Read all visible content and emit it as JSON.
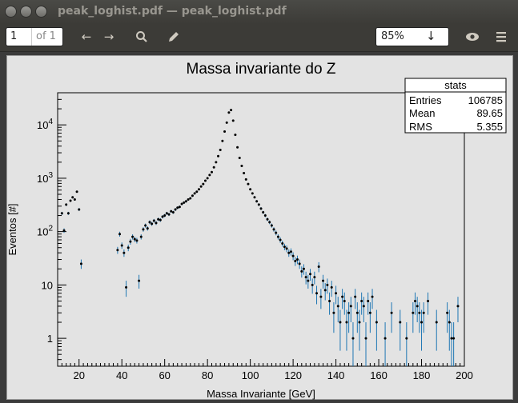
{
  "window": {
    "title": "peak_loghist.pdf — peak_loghist.pdf"
  },
  "toolbar": {
    "page_current": "1",
    "page_total": "of 1",
    "zoom": "85%",
    "icons": [
      "back-arrow-icon",
      "forward-arrow-icon",
      "search-icon",
      "pencil-icon",
      "chevron-down-icon",
      "eye-icon",
      "menu-icon"
    ]
  },
  "chart_data": {
    "type": "scatter",
    "title": "Massa invariante do Z",
    "xlabel": "Massa Invariante [GeV]",
    "ylabel": "Eventos [#]",
    "xlim": [
      10,
      200
    ],
    "ylim": [
      0.3,
      40000
    ],
    "yscale": "log",
    "x_ticks": [
      "20",
      "40",
      "60",
      "80",
      "100",
      "120",
      "140",
      "160",
      "180",
      "200"
    ],
    "y_ticks": [
      "1",
      "10",
      "10^2",
      "10^3",
      "10^4"
    ],
    "stats": {
      "title": "stats",
      "rows": [
        {
          "label": "Entries",
          "value": "106785"
        },
        {
          "label": "Mean",
          "value": "89.65"
        },
        {
          "label": "RMS",
          "value": "5.355"
        }
      ]
    },
    "series": [
      {
        "points": [
          [
            12,
            220
          ],
          [
            13,
            105
          ],
          [
            14,
            320
          ],
          [
            15,
            220
          ],
          [
            16,
            380
          ],
          [
            17,
            440
          ],
          [
            18,
            400
          ],
          [
            19,
            560
          ],
          [
            20,
            260
          ],
          [
            21,
            25
          ],
          [
            38,
            45
          ],
          [
            39,
            90
          ],
          [
            40,
            55
          ],
          [
            41,
            40
          ],
          [
            42,
            9
          ],
          [
            43,
            50
          ],
          [
            44,
            65
          ],
          [
            45,
            80
          ],
          [
            46,
            72
          ],
          [
            47,
            68
          ],
          [
            48,
            12
          ],
          [
            49,
            80
          ],
          [
            50,
            110
          ],
          [
            51,
            130
          ],
          [
            52,
            115
          ],
          [
            53,
            150
          ],
          [
            54,
            140
          ],
          [
            55,
            160
          ],
          [
            56,
            145
          ],
          [
            57,
            170
          ],
          [
            58,
            165
          ],
          [
            59,
            190
          ],
          [
            60,
            200
          ],
          [
            61,
            220
          ],
          [
            62,
            210
          ],
          [
            63,
            240
          ],
          [
            64,
            230
          ],
          [
            65,
            260
          ],
          [
            66,
            280
          ],
          [
            67,
            290
          ],
          [
            68,
            330
          ],
          [
            69,
            350
          ],
          [
            70,
            370
          ],
          [
            71,
            400
          ],
          [
            72,
            420
          ],
          [
            73,
            470
          ],
          [
            74,
            520
          ],
          [
            75,
            560
          ],
          [
            76,
            620
          ],
          [
            77,
            700
          ],
          [
            78,
            780
          ],
          [
            79,
            900
          ],
          [
            80,
            1000
          ],
          [
            81,
            1150
          ],
          [
            82,
            1300
          ],
          [
            83,
            1600
          ],
          [
            84,
            2000
          ],
          [
            85,
            2600
          ],
          [
            86,
            3400
          ],
          [
            87,
            5000
          ],
          [
            88,
            7500
          ],
          [
            89,
            11000
          ],
          [
            90,
            17000
          ],
          [
            91,
            19000
          ],
          [
            92,
            12000
          ],
          [
            93,
            6500
          ],
          [
            94,
            3800
          ],
          [
            95,
            2400
          ],
          [
            96,
            1700
          ],
          [
            97,
            1250
          ],
          [
            98,
            950
          ],
          [
            99,
            780
          ],
          [
            100,
            620
          ],
          [
            101,
            520
          ],
          [
            102,
            440
          ],
          [
            103,
            370
          ],
          [
            104,
            320
          ],
          [
            105,
            270
          ],
          [
            106,
            230
          ],
          [
            107,
            200
          ],
          [
            108,
            170
          ],
          [
            109,
            150
          ],
          [
            110,
            130
          ],
          [
            111,
            110
          ],
          [
            112,
            95
          ],
          [
            113,
            80
          ],
          [
            114,
            70
          ],
          [
            115,
            60
          ],
          [
            116,
            52
          ],
          [
            117,
            48
          ],
          [
            118,
            40
          ],
          [
            119,
            42
          ],
          [
            120,
            35
          ],
          [
            121,
            28
          ],
          [
            122,
            30
          ],
          [
            123,
            25
          ],
          [
            124,
            18
          ],
          [
            125,
            20
          ],
          [
            126,
            14
          ],
          [
            127,
            12
          ],
          [
            128,
            16
          ],
          [
            129,
            10
          ],
          [
            130,
            14
          ],
          [
            131,
            7
          ],
          [
            132,
            22
          ],
          [
            133,
            6
          ],
          [
            134,
            12
          ],
          [
            135,
            8
          ],
          [
            136,
            10
          ],
          [
            137,
            5
          ],
          [
            138,
            9
          ],
          [
            139,
            3
          ],
          [
            140,
            7
          ],
          [
            141,
            4
          ],
          [
            142,
            2
          ],
          [
            143,
            6
          ],
          [
            144,
            5
          ],
          [
            145,
            2
          ],
          [
            146,
            3
          ],
          [
            147,
            4
          ],
          [
            148,
            1
          ],
          [
            149,
            6
          ],
          [
            150,
            3
          ],
          [
            151,
            2
          ],
          [
            152,
            5
          ],
          [
            153,
            4
          ],
          [
            154,
            1
          ],
          [
            155,
            5
          ],
          [
            156,
            3
          ],
          [
            157,
            6
          ],
          [
            159,
            2
          ],
          [
            163,
            1
          ],
          [
            166,
            3
          ],
          [
            170,
            2
          ],
          [
            173,
            1
          ],
          [
            176,
            3
          ],
          [
            177,
            5
          ],
          [
            178,
            4
          ],
          [
            179,
            3
          ],
          [
            180,
            2
          ],
          [
            181,
            3
          ],
          [
            183,
            5
          ],
          [
            187,
            2
          ],
          [
            192,
            3
          ],
          [
            193,
            2
          ],
          [
            194,
            1
          ],
          [
            195,
            1
          ],
          [
            197,
            4
          ]
        ]
      }
    ]
  }
}
